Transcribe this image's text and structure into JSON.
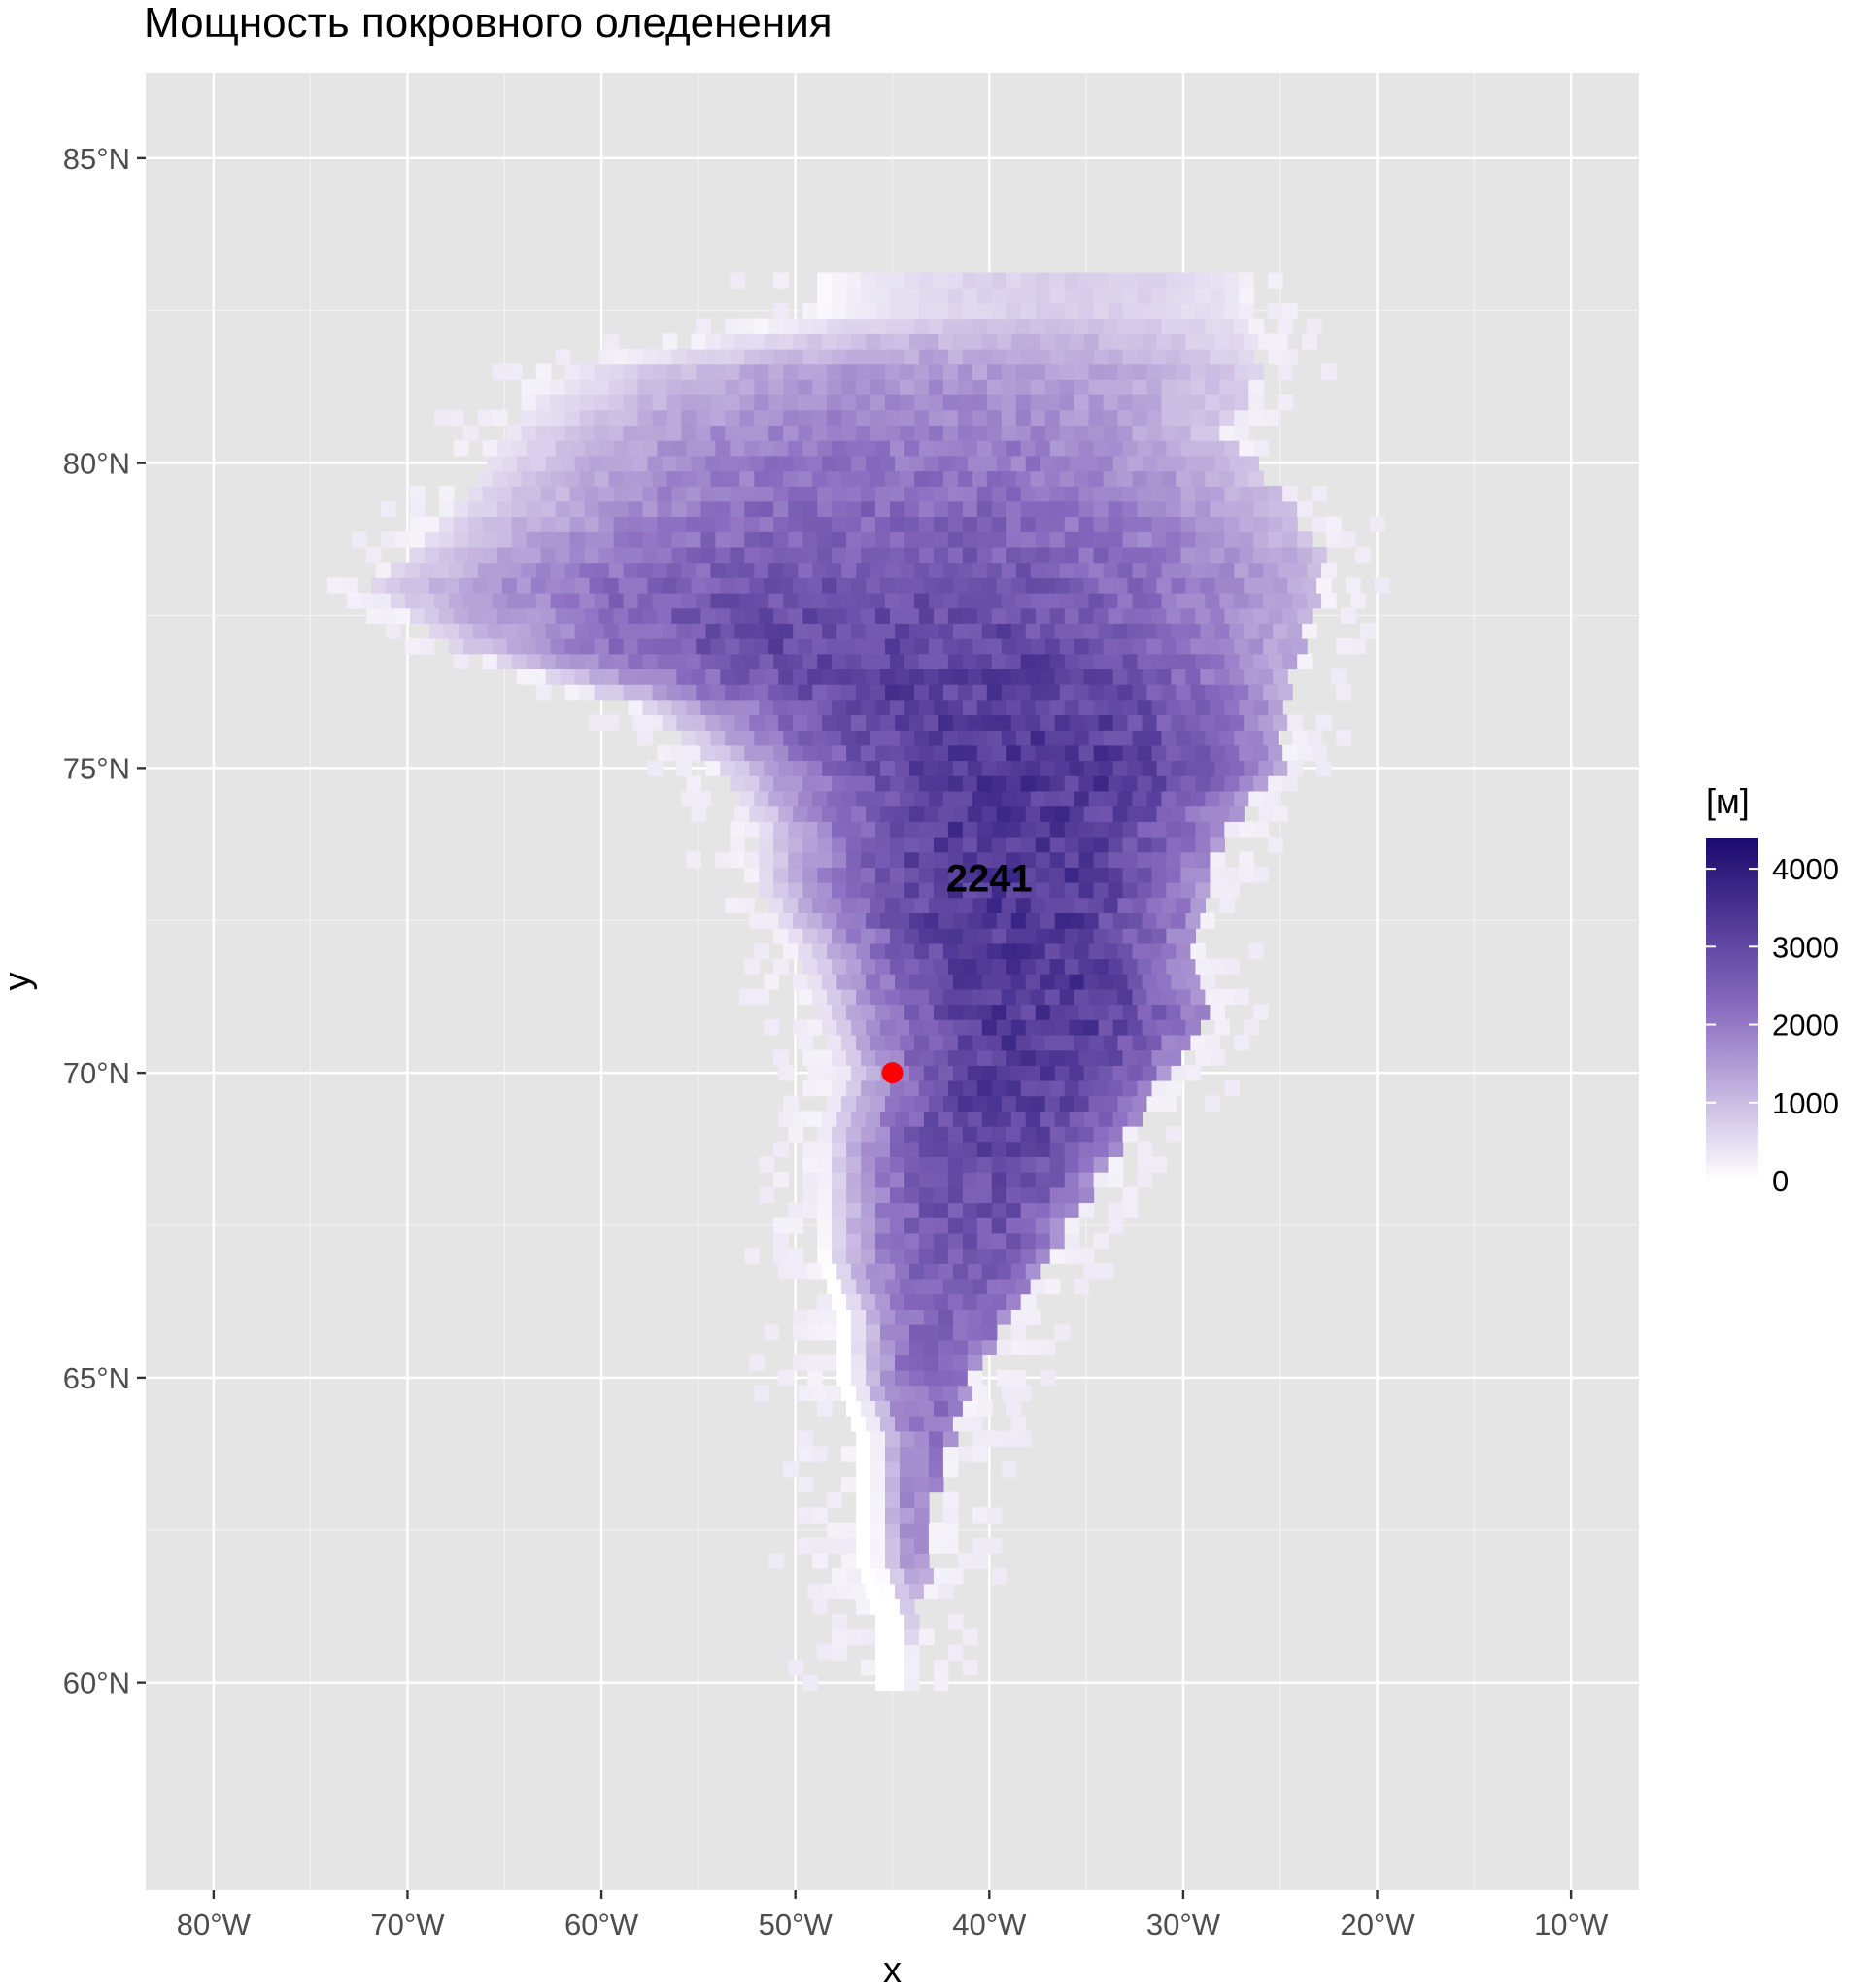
{
  "chart_data": {
    "type": "heatmap",
    "title": "Мощность покровного оледенения",
    "xlabel": "x",
    "ylabel": "y",
    "xlim": [
      -83.5,
      -6.5
    ],
    "ylim": [
      56.6,
      86.4
    ],
    "x_ticks": [
      -80,
      -70,
      -60,
      -50,
      -40,
      -30,
      -20,
      -10
    ],
    "x_tick_labels": [
      "80°W",
      "70°W",
      "60°W",
      "50°W",
      "40°W",
      "30°W",
      "20°W",
      "10°W"
    ],
    "y_ticks": [
      60,
      65,
      70,
      75,
      80,
      85
    ],
    "y_tick_labels": [
      "60°N",
      "65°N",
      "70°N",
      "75°N",
      "80°N",
      "85°N"
    ],
    "grid": true,
    "panel_background": "#e5e5e5",
    "grid_color": "#ffffff",
    "colorscale": {
      "low": "#ffffff",
      "high": "#1a0a6e",
      "min": 0,
      "max": 4400
    },
    "legend": {
      "title": "[м]",
      "position": "right",
      "breaks": [
        0,
        1000,
        2000,
        3000,
        4000
      ],
      "labels": [
        "0",
        "1000",
        "2000",
        "3000",
        "4000"
      ]
    },
    "point": {
      "x": -45,
      "y": 70,
      "color": "#ff0000"
    },
    "annotation": {
      "text": "2241",
      "x": -40,
      "y": 73.2
    },
    "ice_thickness_profile": [
      {
        "lat": 82.5,
        "w": -49,
        "e": -27,
        "peak": 700
      },
      {
        "lat": 81.5,
        "w": -62,
        "e": -26,
        "peak": 1500
      },
      {
        "lat": 80.5,
        "w": -65,
        "e": -28,
        "peak": 1900
      },
      {
        "lat": 79.5,
        "w": -67,
        "e": -25,
        "peak": 2200
      },
      {
        "lat": 78.5,
        "w": -70,
        "e": -23,
        "peak": 2500
      },
      {
        "lat": 78.0,
        "w": -72,
        "e": -23,
        "peak": 2700
      },
      {
        "lat": 77.0,
        "w": -68,
        "e": -24,
        "peak": 3000
      },
      {
        "lat": 76.0,
        "w": -58,
        "e": -25,
        "peak": 3200
      },
      {
        "lat": 75.0,
        "w": -54,
        "e": -25,
        "peak": 3300
      },
      {
        "lat": 74.0,
        "w": -52,
        "e": -28,
        "peak": 3300
      },
      {
        "lat": 73.0,
        "w": -52,
        "e": -29,
        "peak": 3300
      },
      {
        "lat": 72.0,
        "w": -50,
        "e": -30,
        "peak": 3300
      },
      {
        "lat": 71.0,
        "w": -49,
        "e": -29,
        "peak": 3300
      },
      {
        "lat": 70.0,
        "w": -48,
        "e": -31,
        "peak": 3200
      },
      {
        "lat": 69.0,
        "w": -49,
        "e": -33,
        "peak": 3000
      },
      {
        "lat": 68.0,
        "w": -49,
        "e": -35,
        "peak": 2800
      },
      {
        "lat": 67.0,
        "w": -49,
        "e": -37,
        "peak": 2600
      },
      {
        "lat": 66.0,
        "w": -48,
        "e": -39,
        "peak": 2400
      },
      {
        "lat": 65.0,
        "w": -48,
        "e": -41,
        "peak": 2200
      },
      {
        "lat": 64.0,
        "w": -47,
        "e": -42,
        "peak": 2000
      },
      {
        "lat": 63.0,
        "w": -47,
        "e": -43,
        "peak": 1800
      },
      {
        "lat": 62.0,
        "w": -47,
        "e": -43,
        "peak": 1500
      },
      {
        "lat": 61.0,
        "w": -46,
        "e": -44,
        "peak": 900
      },
      {
        "lat": 60.5,
        "w": -46,
        "e": -44,
        "peak": 300
      }
    ]
  }
}
